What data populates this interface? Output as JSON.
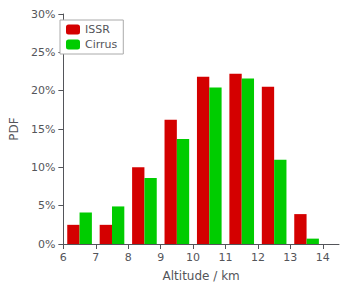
{
  "chart_data": {
    "type": "bar",
    "xlabel": "Altitude / km",
    "ylabel": "PDF",
    "x": [
      6.5,
      7.5,
      8.5,
      9.5,
      10.5,
      11.5,
      12.5,
      13.5
    ],
    "series": [
      {
        "name": "ISSR",
        "color": "#d40000",
        "values": [
          2.5,
          2.5,
          10.0,
          16.2,
          21.8,
          22.2,
          20.5,
          3.9
        ]
      },
      {
        "name": "Cirrus",
        "color": "#00cc00",
        "values": [
          4.1,
          4.9,
          8.6,
          13.7,
          20.4,
          21.6,
          11.0,
          0.7
        ]
      }
    ],
    "xlim": [
      6,
      14.5
    ],
    "xticks": [
      6,
      7,
      8,
      9,
      10,
      11,
      12,
      13,
      14
    ],
    "ylim": [
      0,
      30
    ],
    "yticks": [
      {
        "value": 0,
        "label": "0%"
      },
      {
        "value": 5,
        "label": "5%"
      },
      {
        "value": 10,
        "label": "10%"
      },
      {
        "value": 15,
        "label": "15%"
      },
      {
        "value": 20,
        "label": "20%"
      },
      {
        "value": 25,
        "label": "25%"
      },
      {
        "value": 30,
        "label": "30%"
      }
    ],
    "legend": "upper left",
    "grid": false
  }
}
